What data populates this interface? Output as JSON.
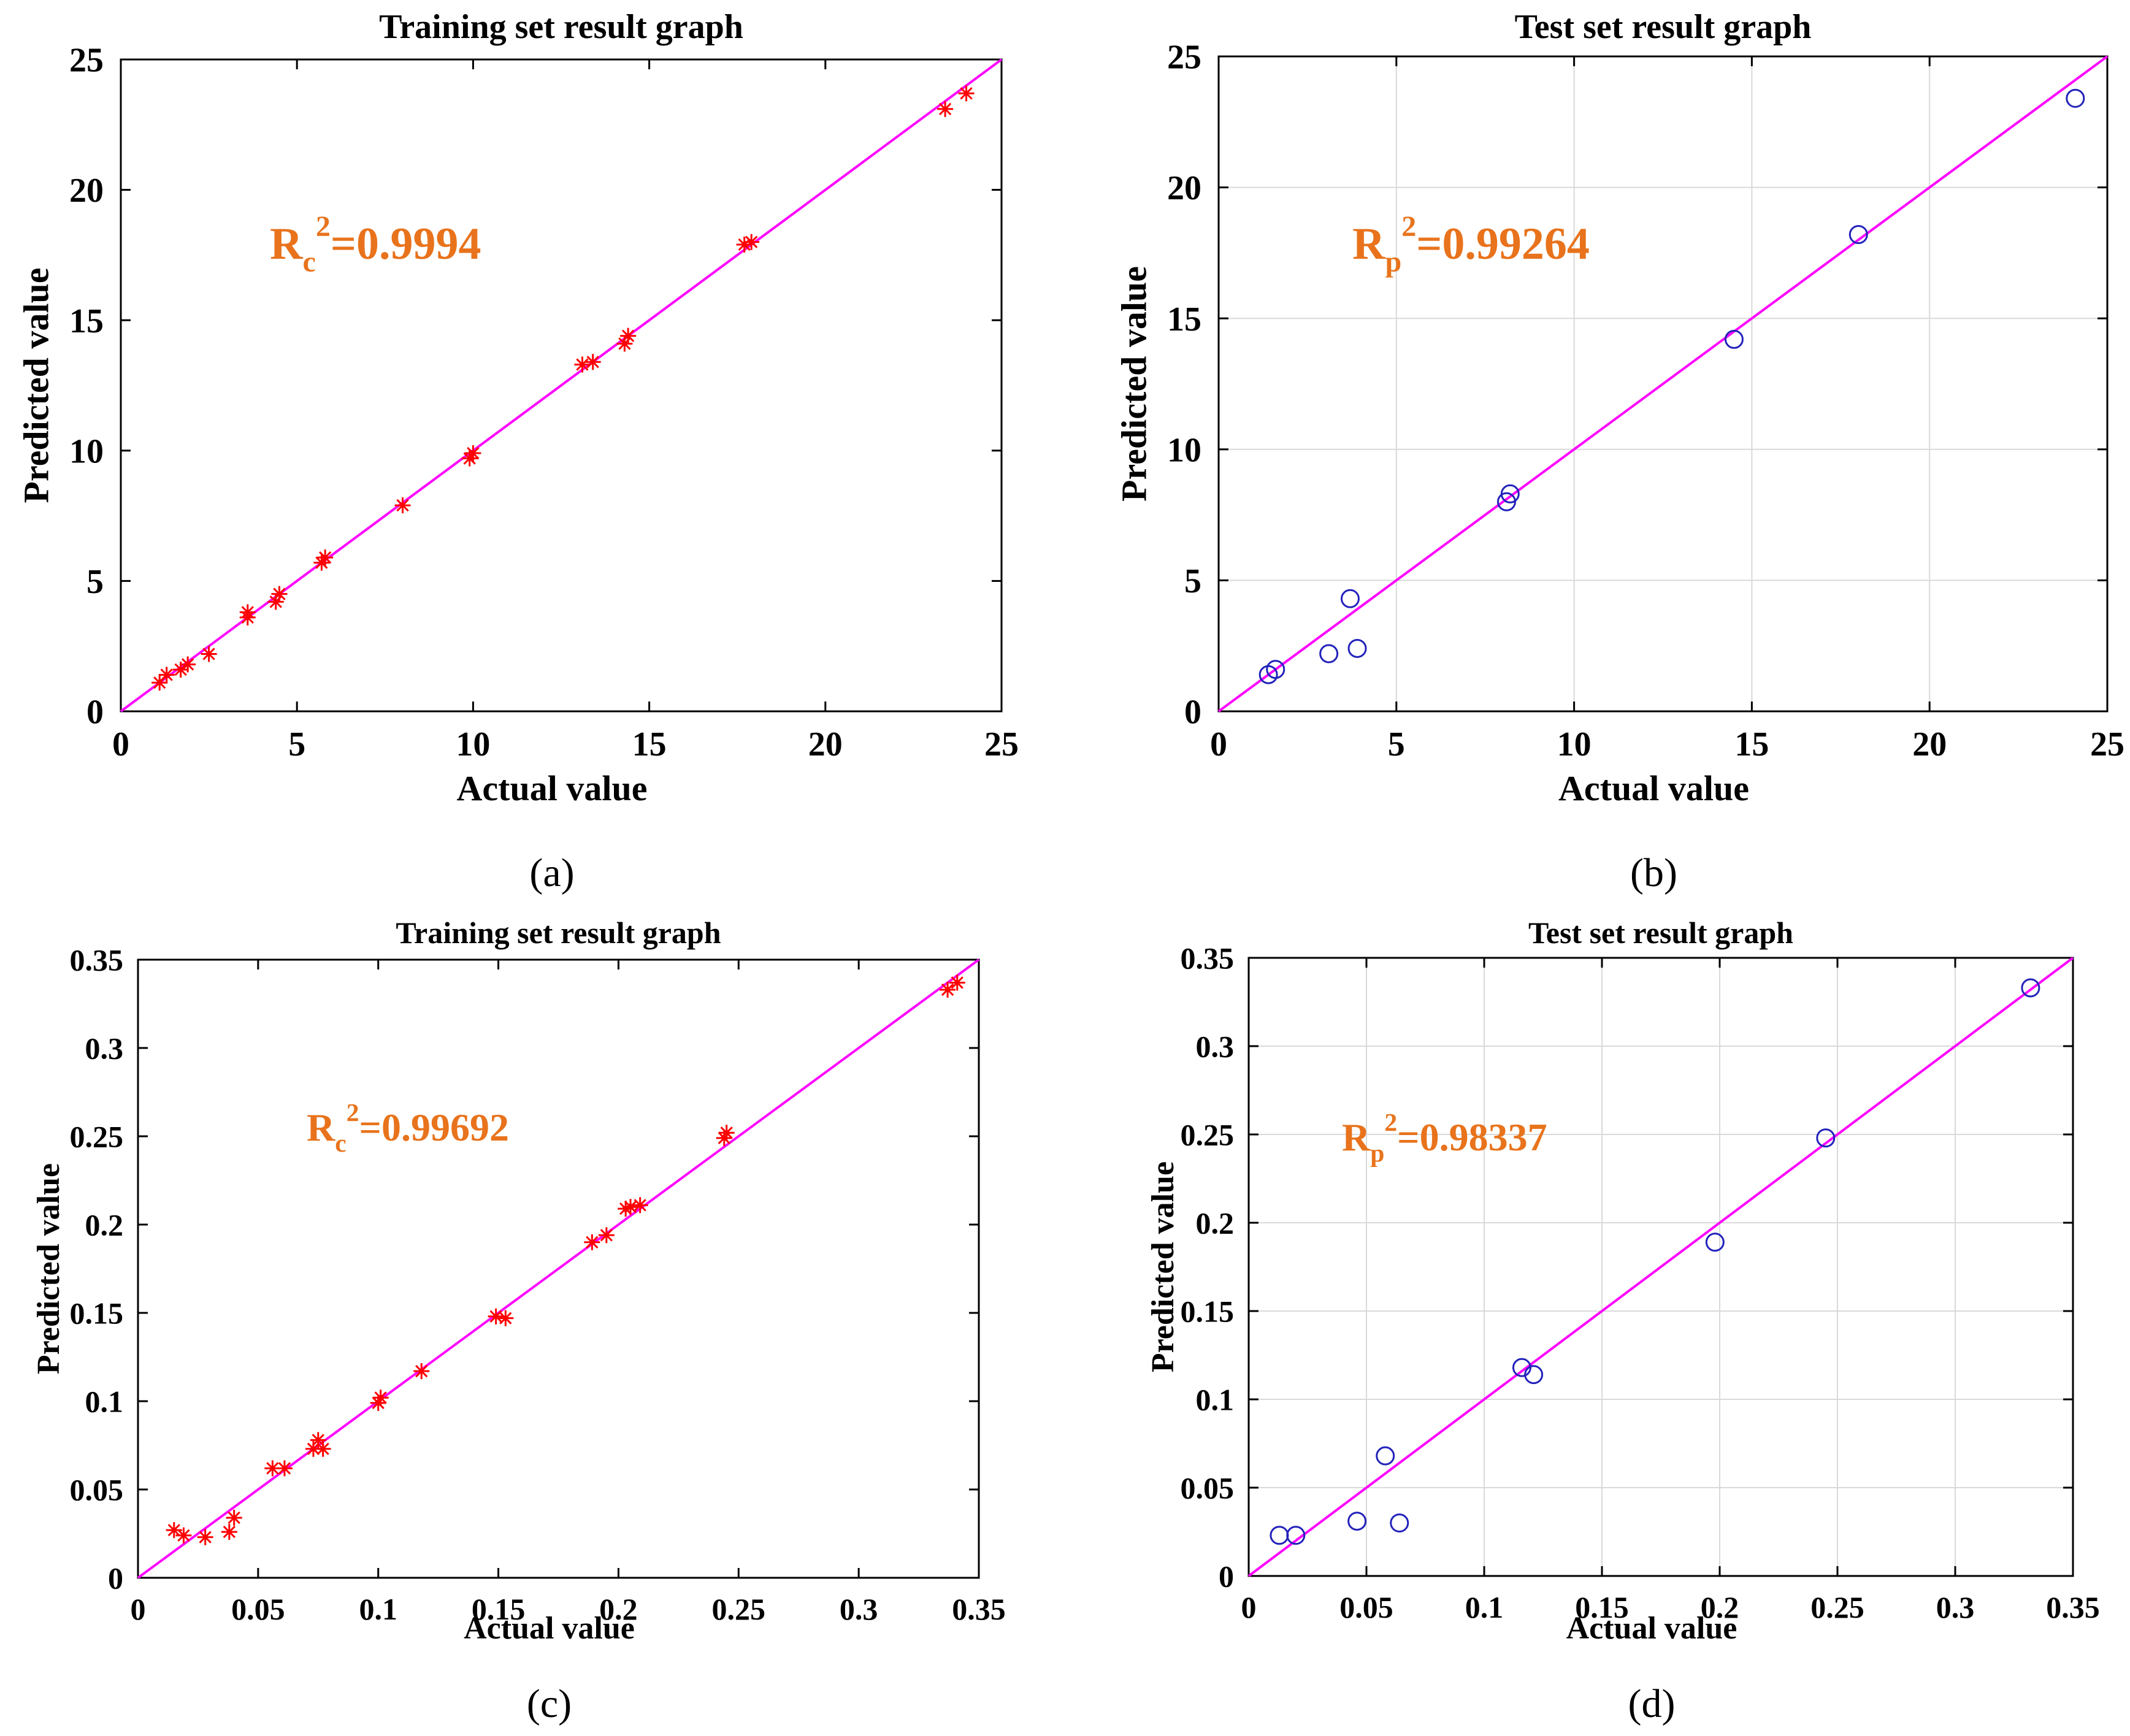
{
  "colors": {
    "fit_line": "#ff00ff",
    "train_marker": "#ff0000",
    "test_marker": "#2222bb",
    "annotation": "#e8731c",
    "axis": "#000000",
    "grid": "#d9d9d9"
  },
  "chart_data": [
    {
      "type": "scatter",
      "panel_label": "(a)",
      "title": "Training set result graph",
      "xlabel": "Actual value",
      "ylabel": "Predicted value",
      "xlim": [
        0,
        25
      ],
      "ylim": [
        0,
        25
      ],
      "xticks": [
        0,
        5,
        10,
        15,
        20,
        25
      ],
      "yticks": [
        0,
        5,
        10,
        15,
        20,
        25
      ],
      "xtick_labels": [
        "0",
        "5",
        "10",
        "15",
        "20",
        "25"
      ],
      "ytick_labels": [
        "0",
        "5",
        "10",
        "15",
        "20",
        "25"
      ],
      "grid": false,
      "marker": "asterisk",
      "annotation": {
        "base": "R",
        "sub": "c",
        "sup": "2",
        "value": "=0.9994"
      },
      "fit_line": [
        [
          0,
          0
        ],
        [
          25,
          25
        ]
      ],
      "points": [
        [
          1.1,
          1.1
        ],
        [
          1.3,
          1.4
        ],
        [
          1.7,
          1.6
        ],
        [
          1.9,
          1.8
        ],
        [
          2.5,
          2.2
        ],
        [
          3.6,
          3.6
        ],
        [
          3.6,
          3.8
        ],
        [
          4.4,
          4.2
        ],
        [
          4.5,
          4.5
        ],
        [
          5.7,
          5.7
        ],
        [
          5.8,
          5.9
        ],
        [
          8.0,
          7.9
        ],
        [
          9.9,
          9.7
        ],
        [
          10.0,
          9.9
        ],
        [
          13.1,
          13.3
        ],
        [
          13.4,
          13.4
        ],
        [
          14.3,
          14.1
        ],
        [
          14.4,
          14.4
        ],
        [
          17.7,
          17.9
        ],
        [
          17.9,
          18.0
        ],
        [
          23.4,
          23.1
        ],
        [
          24.0,
          23.7
        ]
      ]
    },
    {
      "type": "scatter",
      "panel_label": "(b)",
      "title": "Test set result graph",
      "xlabel": "Actual value",
      "ylabel": "Predicted value",
      "xlim": [
        0,
        25
      ],
      "ylim": [
        0,
        25
      ],
      "xticks": [
        0,
        5,
        10,
        15,
        20,
        25
      ],
      "yticks": [
        0,
        5,
        10,
        15,
        20,
        25
      ],
      "xtick_labels": [
        "0",
        "5",
        "10",
        "15",
        "20",
        "25"
      ],
      "ytick_labels": [
        "0",
        "5",
        "10",
        "15",
        "20",
        "25"
      ],
      "grid": true,
      "marker": "circle",
      "annotation": {
        "base": "R",
        "sub": "p",
        "sup": "2",
        "value": "=0.99264"
      },
      "fit_line": [
        [
          0,
          0
        ],
        [
          25,
          25
        ]
      ],
      "points": [
        [
          1.4,
          1.4
        ],
        [
          1.6,
          1.6
        ],
        [
          3.1,
          2.2
        ],
        [
          3.7,
          4.3
        ],
        [
          3.9,
          2.4
        ],
        [
          8.1,
          8.0
        ],
        [
          8.2,
          8.3
        ],
        [
          14.5,
          14.2
        ],
        [
          18.0,
          18.2
        ],
        [
          24.1,
          23.4
        ]
      ]
    },
    {
      "type": "scatter",
      "panel_label": "(c)",
      "title": "Training set result graph",
      "xlabel": "Actual value",
      "ylabel": "Predicted value",
      "xlim": [
        0,
        0.35
      ],
      "ylim": [
        0,
        0.35
      ],
      "xticks": [
        0,
        0.05,
        0.1,
        0.15,
        0.2,
        0.25,
        0.3,
        0.35
      ],
      "yticks": [
        0,
        0.05,
        0.1,
        0.15,
        0.2,
        0.25,
        0.3,
        0.35
      ],
      "xtick_labels": [
        "0",
        "0.05",
        "0.1",
        "0.15",
        "0.2",
        "0.25",
        "0.3",
        "0.35"
      ],
      "ytick_labels": [
        "0",
        "0.05",
        "0.1",
        "0.15",
        "0.2",
        "0.25",
        "0.3",
        "0.35"
      ],
      "grid": false,
      "marker": "asterisk",
      "annotation": {
        "base": "R",
        "sub": "c",
        "sup": "2",
        "value": "=0.99692"
      },
      "fit_line": [
        [
          0,
          0
        ],
        [
          0.35,
          0.35
        ]
      ],
      "points": [
        [
          0.015,
          0.027
        ],
        [
          0.019,
          0.024
        ],
        [
          0.028,
          0.023
        ],
        [
          0.038,
          0.026
        ],
        [
          0.04,
          0.034
        ],
        [
          0.056,
          0.062
        ],
        [
          0.061,
          0.062
        ],
        [
          0.073,
          0.073
        ],
        [
          0.075,
          0.078
        ],
        [
          0.077,
          0.073
        ],
        [
          0.1,
          0.099
        ],
        [
          0.101,
          0.102
        ],
        [
          0.118,
          0.117
        ],
        [
          0.149,
          0.148
        ],
        [
          0.153,
          0.147
        ],
        [
          0.189,
          0.19
        ],
        [
          0.195,
          0.194
        ],
        [
          0.203,
          0.209
        ],
        [
          0.205,
          0.21
        ],
        [
          0.209,
          0.211
        ],
        [
          0.244,
          0.249
        ],
        [
          0.245,
          0.252
        ],
        [
          0.337,
          0.333
        ],
        [
          0.341,
          0.337
        ]
      ]
    },
    {
      "type": "scatter",
      "panel_label": "(d)",
      "title": "Test set result graph",
      "xlabel": "Actual value",
      "ylabel": "Predicted value",
      "xlim": [
        0,
        0.35
      ],
      "ylim": [
        0,
        0.35
      ],
      "xticks": [
        0,
        0.05,
        0.1,
        0.15,
        0.2,
        0.25,
        0.3,
        0.35
      ],
      "yticks": [
        0,
        0.05,
        0.1,
        0.15,
        0.2,
        0.25,
        0.3,
        0.35
      ],
      "xtick_labels": [
        "0",
        "0.05",
        "0.1",
        "0.15",
        "0.2",
        "0.25",
        "0.3",
        "0.35"
      ],
      "ytick_labels": [
        "0",
        "0.05",
        "0.1",
        "0.15",
        "0.2",
        "0.25",
        "0.3",
        "0.35"
      ],
      "grid": true,
      "marker": "circle",
      "annotation": {
        "base": "R",
        "sub": "p",
        "sup": "2",
        "value": "=0.98337"
      },
      "fit_line": [
        [
          0,
          0
        ],
        [
          0.35,
          0.35
        ]
      ],
      "points": [
        [
          0.013,
          0.023
        ],
        [
          0.02,
          0.023
        ],
        [
          0.046,
          0.031
        ],
        [
          0.058,
          0.068
        ],
        [
          0.064,
          0.03
        ],
        [
          0.116,
          0.118
        ],
        [
          0.121,
          0.114
        ],
        [
          0.198,
          0.189
        ],
        [
          0.245,
          0.248
        ],
        [
          0.332,
          0.333
        ]
      ]
    }
  ]
}
